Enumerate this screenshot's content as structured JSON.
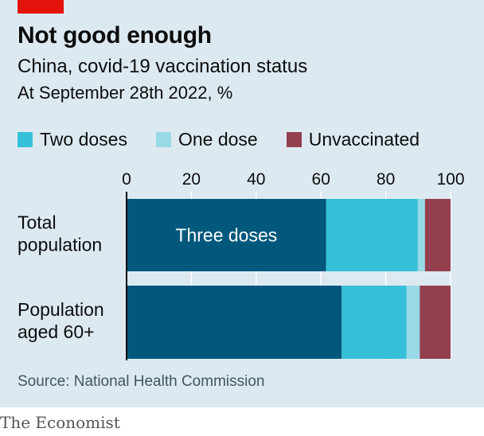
{
  "header": {
    "title": "Not good enough",
    "subtitle": "China, covid-19 vaccination status",
    "subtitle2": "At September 28th 2022, %"
  },
  "legend": [
    {
      "label": "Two doses",
      "color": "#36bfd8"
    },
    {
      "label": "One dose",
      "color": "#98d9e6"
    },
    {
      "label": "Unvaccinated",
      "color": "#943f4d"
    }
  ],
  "chart_data": {
    "type": "bar",
    "orientation": "horizontal",
    "stacked": true,
    "categories": [
      "Total population",
      "Population aged 60+"
    ],
    "category_lines": [
      [
        "Total",
        "population"
      ],
      [
        "Population",
        "aged 60+"
      ]
    ],
    "series": [
      {
        "name": "Three doses",
        "color": "#02587c",
        "values": [
          61.6,
          66.4
        ]
      },
      {
        "name": "Two doses",
        "color": "#36bfd8",
        "values": [
          28.3,
          20.0
        ]
      },
      {
        "name": "One dose",
        "color": "#98d9e6",
        "values": [
          2.2,
          4.1
        ]
      },
      {
        "name": "Unvaccinated",
        "color": "#943f4d",
        "values": [
          7.9,
          9.5
        ]
      }
    ],
    "bar_label": "Three doses",
    "xlim": [
      0,
      100
    ],
    "xticks": [
      0,
      20,
      40,
      60,
      80,
      100
    ],
    "grid": true
  },
  "footer": {
    "source": "Source: National Health Commission",
    "brand": "The Economist"
  }
}
